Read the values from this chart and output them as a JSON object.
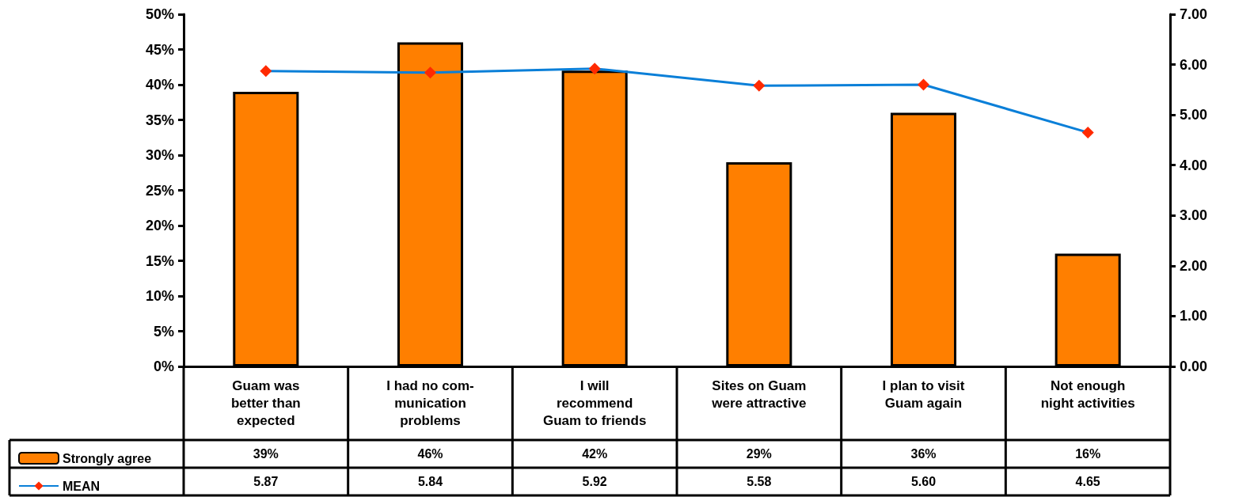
{
  "chart_data": {
    "type": "bar",
    "categories": [
      "Guam was\nbetter than\nexpected",
      "I had no com-\nmunication\nproblems",
      "I will\nrecommend\nGuam to friends",
      "Sites on Guam\nwere attractive",
      "I plan to visit\nGuam again",
      "Not enough\nnight activities"
    ],
    "series": [
      {
        "name": "Strongly agree",
        "color": "#ff7f00",
        "values": [
          39,
          46,
          42,
          29,
          36,
          16
        ],
        "value_labels": [
          "39%",
          "46%",
          "42%",
          "29%",
          "36%",
          "16%"
        ]
      },
      {
        "name": "MEAN",
        "type": "line",
        "axis": "y2",
        "color": "#0a7fd8",
        "marker": "diamond",
        "values": [
          5.87,
          5.84,
          5.92,
          5.58,
          5.6,
          4.65
        ],
        "value_labels": [
          "5.87",
          "5.84",
          "5.92",
          "5.58",
          "5.60",
          "4.65"
        ]
      }
    ],
    "ylim": [
      0,
      50
    ],
    "yticks": [
      {
        "value": 0,
        "label": "0%"
      },
      {
        "value": 5,
        "label": "5%"
      },
      {
        "value": 10,
        "label": "10%"
      },
      {
        "value": 15,
        "label": "15%"
      },
      {
        "value": 20,
        "label": "20%"
      },
      {
        "value": 25,
        "label": "25%"
      },
      {
        "value": 30,
        "label": "30%"
      },
      {
        "value": 35,
        "label": "35%"
      },
      {
        "value": 40,
        "label": "40%"
      },
      {
        "value": 45,
        "label": "45%"
      },
      {
        "value": 50,
        "label": "50%"
      }
    ],
    "y2lim": [
      0,
      7
    ],
    "y2ticks": [
      {
        "value": 0,
        "label": "0.00"
      },
      {
        "value": 1,
        "label": "1.00"
      },
      {
        "value": 2,
        "label": "2.00"
      },
      {
        "value": 3,
        "label": "3.00"
      },
      {
        "value": 4,
        "label": "4.00"
      },
      {
        "value": 5,
        "label": "5.00"
      },
      {
        "value": 6,
        "label": "6.00"
      },
      {
        "value": 7,
        "label": "7.00"
      }
    ],
    "grid": false,
    "legend": "bottom left"
  }
}
